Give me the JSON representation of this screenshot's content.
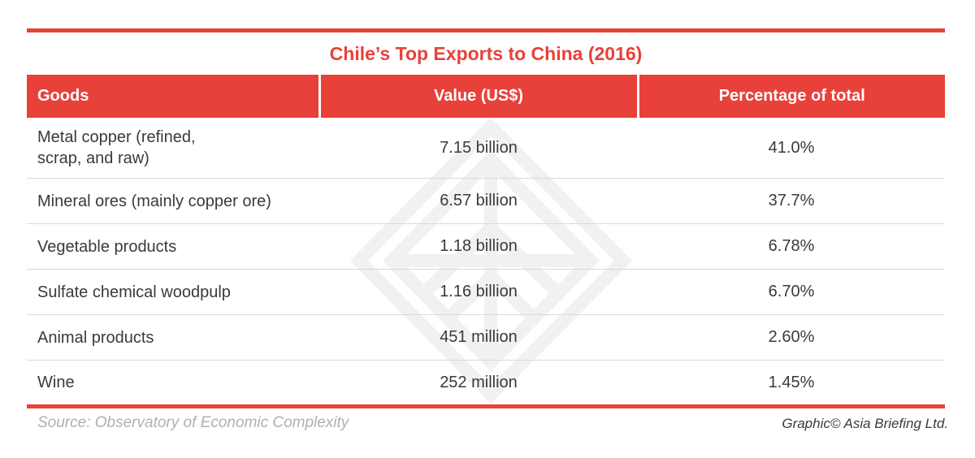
{
  "title": "Chile’s Top Exports to China (2016)",
  "colors": {
    "accent": "#e8413a",
    "text": "#3a3a3a",
    "source_text": "#b0b0b0"
  },
  "table": {
    "headers": [
      "Goods",
      "Value (US$)",
      "Percentage of total"
    ],
    "rows": [
      {
        "goods": "Metal copper (refined,\nscrap, and raw)",
        "value": "7.15 billion",
        "percent": "41.0%"
      },
      {
        "goods": "Mineral ores (mainly copper ore)",
        "value": "6.57 billion",
        "percent": "37.7%"
      },
      {
        "goods": "Vegetable products",
        "value": "1.18 billion",
        "percent": "6.78%"
      },
      {
        "goods": "Sulfate chemical woodpulp",
        "value": "1.16 billion",
        "percent": "6.70%"
      },
      {
        "goods": "Animal products",
        "value": "451 million",
        "percent": "2.60%"
      },
      {
        "goods": "Wine",
        "value": "252 million",
        "percent": "1.45%"
      }
    ]
  },
  "watermark_icon": "asia-briefing-logo-icon",
  "footer": {
    "source": "Source: Observatory of Economic Complexity",
    "credit": "Graphic© Asia Briefing Ltd."
  }
}
